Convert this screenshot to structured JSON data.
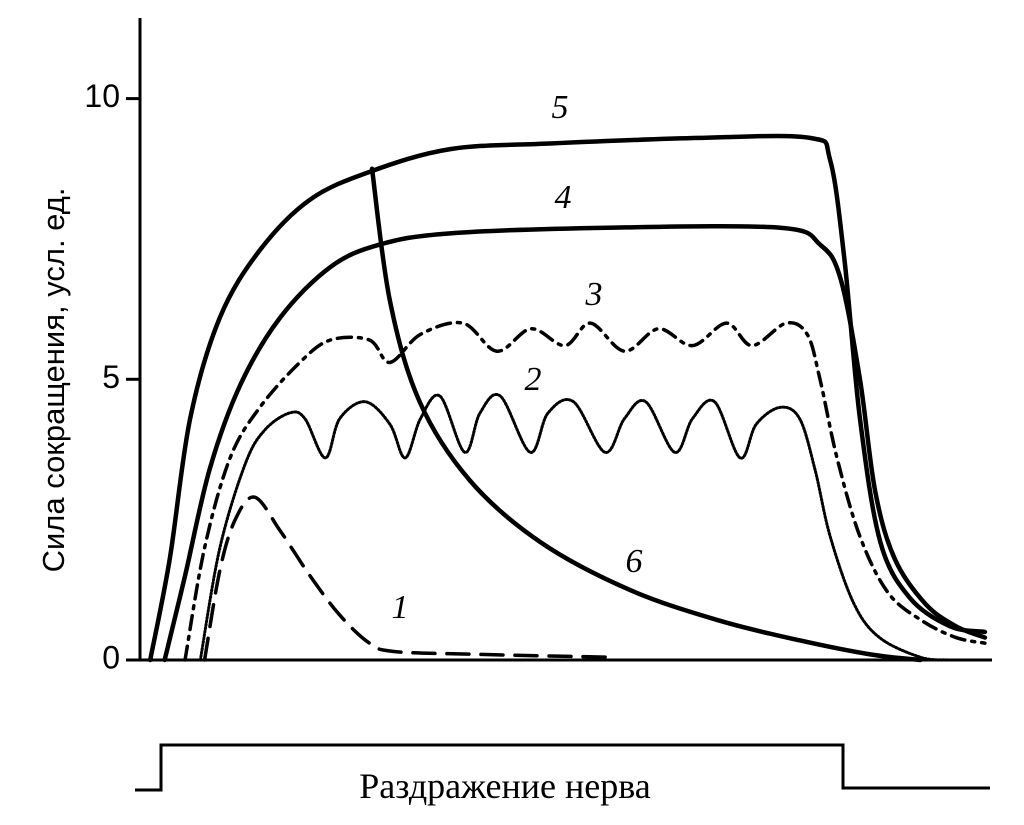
{
  "chart_data": {
    "type": "line",
    "y_label": "Сила сокращения, усл. ед.",
    "stimulus_label": "Раздражение нерва",
    "xlim": [
      0,
      100
    ],
    "ylim": [
      0,
      11.4
    ],
    "yticks": [
      0,
      5,
      10
    ],
    "grid": false,
    "series": [
      {
        "name": "1",
        "color": "#000000",
        "style": "dashed",
        "x": [
          7.6,
          9.4,
          11.2,
          13.5,
          16.5,
          20,
          23.5,
          27,
          30,
          40,
          55
        ],
        "values": [
          0,
          1.6,
          2.5,
          2.9,
          2.3,
          1.5,
          0.8,
          0.3,
          0.15,
          0.1,
          0.05
        ]
      },
      {
        "name": "2",
        "color": "#000000",
        "style": "dotted",
        "x": [
          7.1,
          9.4,
          12.4,
          14.7,
          17.6,
          19.4,
          21.8,
          23.5,
          26.5,
          29.4,
          31.2,
          33,
          35.3,
          38.2,
          40,
          42.4,
          45.9,
          48,
          51,
          54.7,
          57,
          59.5,
          62.9,
          65,
          67.6,
          70.6,
          72.5,
          75.3,
          77.6,
          79.4,
          81.2,
          84,
          87,
          91.8,
          95
        ],
        "values": [
          0,
          2.0,
          3.5,
          4.1,
          4.4,
          4.3,
          3.6,
          4.3,
          4.6,
          4.2,
          3.6,
          4.3,
          4.7,
          3.7,
          4.4,
          4.7,
          3.7,
          4.4,
          4.6,
          3.7,
          4.3,
          4.6,
          3.7,
          4.3,
          4.6,
          3.6,
          4.2,
          4.5,
          4.3,
          3.4,
          2.2,
          1.0,
          0.4,
          0.05,
          0
        ]
      },
      {
        "name": "3",
        "color": "#000000",
        "style": "dashdot",
        "x": [
          5.3,
          7.6,
          10.6,
          14.1,
          18.8,
          22.4,
          27,
          29.4,
          33,
          38,
          42,
          46,
          50,
          53,
          57,
          61,
          65,
          69,
          72,
          76,
          78.5,
          80,
          82,
          84.7,
          88,
          92,
          96,
          99.4
        ],
        "values": [
          0,
          2,
          3.6,
          4.5,
          5.3,
          5.7,
          5.7,
          5.3,
          5.8,
          6.0,
          5.5,
          5.9,
          5.6,
          6.0,
          5.5,
          5.9,
          5.6,
          6.0,
          5.6,
          6.0,
          5.8,
          5,
          3.6,
          2.2,
          1.2,
          0.7,
          0.4,
          0.3
        ]
      },
      {
        "name": "4",
        "color": "#000000",
        "style": "solid",
        "x": [
          2.9,
          5.3,
          8.2,
          11.8,
          16.5,
          22.4,
          28.2,
          36.5,
          55,
          75.3,
          80,
          82.4,
          84.7,
          86.5,
          88.8,
          92.4,
          96,
          99.4
        ],
        "values": [
          0,
          1.5,
          3.4,
          4.9,
          6.1,
          7.0,
          7.4,
          7.6,
          7.7,
          7.7,
          7.4,
          6.8,
          5,
          3,
          1.8,
          1,
          0.6,
          0.4
        ]
      },
      {
        "name": "5",
        "color": "#000000",
        "style": "solid",
        "x": [
          1.2,
          3.5,
          5.9,
          9.4,
          14.1,
          20,
          27.1,
          36.5,
          48.2,
          65.9,
          78.8,
          81.2,
          82.9,
          84.7,
          87.1,
          90.6,
          95.3,
          99.4
        ],
        "values": [
          0,
          1.8,
          4.3,
          6.1,
          7.3,
          8.2,
          8.7,
          9.1,
          9.2,
          9.3,
          9.3,
          8.9,
          7.1,
          4.3,
          2.1,
          1.1,
          0.6,
          0.5
        ]
      },
      {
        "name": "6",
        "color": "#000000",
        "style": "solid",
        "x": [
          27.3,
          29.4,
          32.9,
          38.8,
          47.1,
          57.6,
          68.2,
          77.6,
          85.9,
          91.8
        ],
        "values": [
          8.75,
          6.4,
          4.6,
          3.2,
          2.1,
          1.25,
          0.7,
          0.35,
          0.1,
          0
        ]
      }
    ]
  }
}
